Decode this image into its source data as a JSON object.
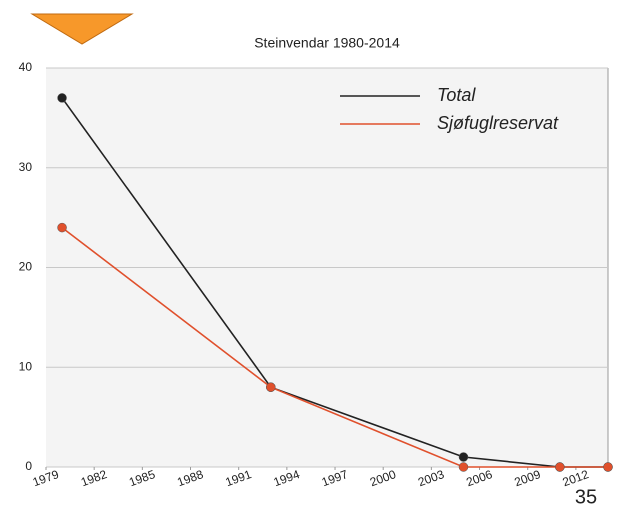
{
  "chart_data": {
    "type": "line",
    "title": "Steinvendar 1980-2014",
    "x": [
      1980,
      1993,
      2005,
      2011,
      2014
    ],
    "series": [
      {
        "name": "Total",
        "color": "#222222",
        "values": [
          37,
          8,
          1,
          0,
          0
        ]
      },
      {
        "name": "Sjøfuglreservat",
        "color": "#e0502c",
        "values": [
          24,
          8,
          0,
          0,
          0
        ]
      }
    ],
    "xlim": [
      1979,
      2014
    ],
    "xticks": [
      1979,
      1982,
      1985,
      1988,
      1991,
      1994,
      1997,
      2000,
      2003,
      2006,
      2009,
      2012
    ],
    "ylim": [
      0,
      40
    ],
    "yticks": [
      0,
      10,
      20,
      30,
      40
    ],
    "grid": true,
    "legend": "top-right"
  },
  "page_number": "35"
}
